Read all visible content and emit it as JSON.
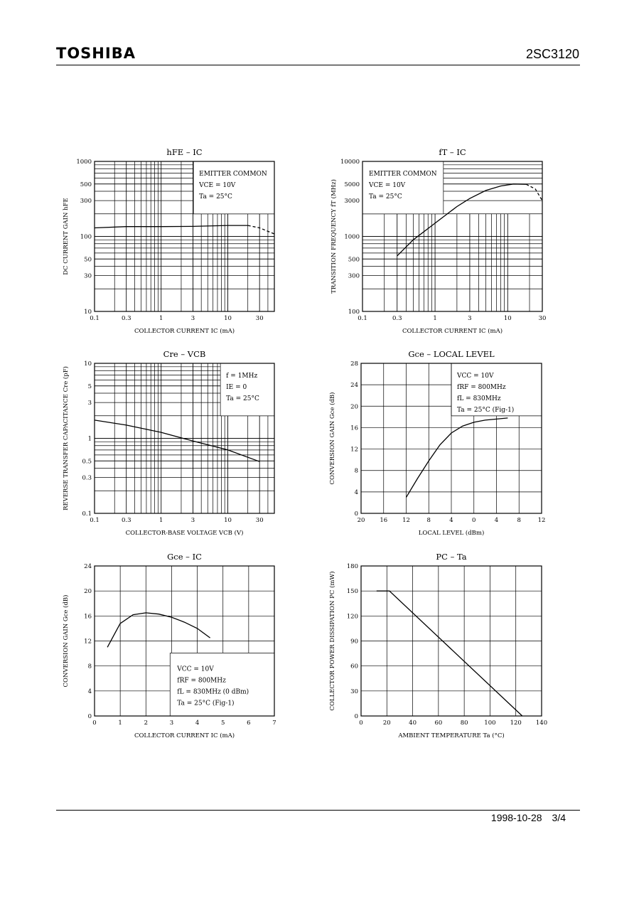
{
  "header": {
    "logo": "TOSHIBA",
    "part_number": "2SC3120"
  },
  "footer": {
    "date": "1998-10-28",
    "page": "3/4"
  },
  "chart_data": [
    {
      "id": "hfe",
      "type": "line",
      "title": "hFE – IC",
      "xlabel": "COLLECTOR CURRENT IC (mA)",
      "ylabel": "DC CURRENT GAIN hFE",
      "xscale": "log",
      "yscale": "log",
      "xlim": [
        0.1,
        50
      ],
      "ylim": [
        10,
        1000
      ],
      "xticks": [
        0.1,
        0.3,
        1,
        3,
        10,
        30
      ],
      "xtick_labels": [
        "0.1",
        "0.3",
        "1",
        "3",
        "10",
        "30"
      ],
      "yticks": [
        10,
        30,
        50,
        100,
        300,
        500,
        1000
      ],
      "ytick_labels": [
        "10",
        "30",
        "50",
        "100",
        "300",
        "500",
        "1000"
      ],
      "annotations": [
        "EMITTER COMMON",
        "VCE = 10V",
        "Ta = 25°C"
      ],
      "series": [
        {
          "points": [
            [
              0.1,
              130
            ],
            [
              0.3,
              135
            ],
            [
              1,
              135
            ],
            [
              3,
              136
            ],
            [
              10,
              140
            ],
            [
              20,
              140
            ]
          ]
        },
        {
          "dashed": true,
          "points": [
            [
              20,
              140
            ],
            [
              30,
              130
            ],
            [
              50,
              108
            ]
          ]
        }
      ]
    },
    {
      "id": "ft",
      "type": "line",
      "title": "fT – IC",
      "xlabel": "COLLECTOR CURRENT IC (mA)",
      "ylabel": "TRANSITION FREQUENCY fT (MHz)",
      "xscale": "log",
      "yscale": "log",
      "xlim": [
        0.1,
        30
      ],
      "ylim": [
        100,
        10000
      ],
      "xticks": [
        0.1,
        0.3,
        1,
        3,
        10,
        30
      ],
      "xtick_labels": [
        "0.1",
        "0.3",
        "1",
        "3",
        "10",
        "30"
      ],
      "yticks": [
        100,
        300,
        500,
        1000,
        3000,
        5000,
        10000
      ],
      "ytick_labels": [
        "100",
        "300",
        "500",
        "1000",
        "3000",
        "5000",
        "10000"
      ],
      "annotations": [
        "EMITTER COMMON",
        "VCE = 10V",
        "Ta = 25°C"
      ],
      "series": [
        {
          "points": [
            [
              0.3,
              550
            ],
            [
              0.5,
              900
            ],
            [
              1,
              1500
            ],
            [
              2,
              2500
            ],
            [
              3,
              3200
            ],
            [
              5,
              4100
            ],
            [
              8,
              4700
            ],
            [
              12,
              5000
            ],
            [
              18,
              4950
            ]
          ]
        },
        {
          "dashed": true,
          "points": [
            [
              18,
              4950
            ],
            [
              24,
              4300
            ],
            [
              30,
              3000
            ]
          ]
        }
      ]
    },
    {
      "id": "cre",
      "type": "line",
      "title": "Cre – VCB",
      "xlabel": "COLLECTOR-BASE VOLTAGE VCB (V)",
      "ylabel": "REVERSE TRANSFER CAPACITANCE Cre (pF)",
      "xscale": "log",
      "yscale": "log",
      "xlim": [
        0.1,
        50
      ],
      "ylim": [
        0.1,
        10
      ],
      "xticks": [
        0.1,
        0.3,
        1,
        3,
        10,
        30
      ],
      "xtick_labels": [
        "0.1",
        "0.3",
        "1",
        "3",
        "10",
        "30"
      ],
      "yticks": [
        0.1,
        0.3,
        0.5,
        1,
        3,
        5,
        10
      ],
      "ytick_labels": [
        "0.1",
        "0.3",
        "0.5",
        "1",
        "3",
        "5",
        "10"
      ],
      "annotations": [
        "f = 1MHz",
        "IE = 0",
        "Ta = 25°C"
      ],
      "series": [
        {
          "points": [
            [
              0.1,
              1.75
            ],
            [
              0.3,
              1.5
            ],
            [
              1,
              1.2
            ],
            [
              3,
              0.92
            ],
            [
              10,
              0.7
            ],
            [
              30,
              0.49
            ]
          ]
        }
      ]
    },
    {
      "id": "gce-lo",
      "type": "line",
      "title": "Gce – LOCAL LEVEL",
      "xlabel": "LOCAL LEVEL (dBm)",
      "ylabel": "CONVERSION GAIN Gce (dB)",
      "xscale": "linear",
      "yscale": "linear",
      "xlim": [
        -20,
        12
      ],
      "ylim": [
        0,
        28
      ],
      "xticks": [
        -20,
        -16,
        -12,
        -8,
        -4,
        0,
        4,
        8,
        12
      ],
      "xtick_labels": [
        "20",
        "16",
        "12",
        "8",
        "4",
        "0",
        "4",
        "8",
        "12"
      ],
      "yticks": [
        0,
        4,
        8,
        12,
        16,
        20,
        24,
        28
      ],
      "ytick_labels": [
        "0",
        "4",
        "8",
        "12",
        "16",
        "20",
        "24",
        "28"
      ],
      "annotations": [
        "VCC = 10V",
        "fRF = 800MHz",
        "fL = 830MHz",
        "Ta = 25°C (Fig-1)"
      ],
      "series": [
        {
          "points": [
            [
              -12,
              3
            ],
            [
              -10,
              6.5
            ],
            [
              -8,
              9.8
            ],
            [
              -6,
              12.8
            ],
            [
              -4,
              15
            ],
            [
              -2,
              16.3
            ],
            [
              0,
              17
            ],
            [
              2,
              17.4
            ],
            [
              4,
              17.6
            ],
            [
              6,
              17.8
            ]
          ]
        }
      ]
    },
    {
      "id": "gce-ic",
      "type": "line",
      "title": "Gce – IC",
      "xlabel": "COLLECTOR CURRENT IC (mA)",
      "ylabel": "CONVERSION GAIN Gce (dB)",
      "xscale": "linear",
      "yscale": "linear",
      "xlim": [
        0,
        7
      ],
      "ylim": [
        0,
        24
      ],
      "xticks": [
        0,
        1,
        2,
        3,
        4,
        5,
        6,
        7
      ],
      "xtick_labels": [
        "0",
        "1",
        "2",
        "3",
        "4",
        "5",
        "6",
        "7"
      ],
      "yticks": [
        0,
        4,
        8,
        12,
        16,
        20,
        24
      ],
      "ytick_labels": [
        "0",
        "4",
        "8",
        "12",
        "16",
        "20",
        "24"
      ],
      "annotations": [
        "VCC = 10V",
        "fRF = 800MHz",
        "fL = 830MHz (0 dBm)",
        "Ta = 25°C (Fig-1)"
      ],
      "series": [
        {
          "points": [
            [
              0.5,
              11
            ],
            [
              1,
              14.8
            ],
            [
              1.5,
              16.2
            ],
            [
              2,
              16.5
            ],
            [
              2.5,
              16.3
            ],
            [
              3,
              15.8
            ],
            [
              3.5,
              15
            ],
            [
              4,
              14
            ],
            [
              4.5,
              12.5
            ]
          ]
        }
      ]
    },
    {
      "id": "pc-ta",
      "type": "line",
      "title": "PC – Ta",
      "xlabel": "AMBIENT TEMPERATURE Ta (°C)",
      "ylabel": "COLLECTOR POWER DISSIPATION PC (mW)",
      "xscale": "linear",
      "yscale": "linear",
      "xlim": [
        0,
        140
      ],
      "ylim": [
        0,
        180
      ],
      "xticks": [
        0,
        20,
        40,
        60,
        80,
        100,
        120,
        140
      ],
      "xtick_labels": [
        "0",
        "20",
        "40",
        "60",
        "80",
        "100",
        "120",
        "140"
      ],
      "yticks": [
        0,
        30,
        60,
        90,
        120,
        150,
        180
      ],
      "ytick_labels": [
        "0",
        "30",
        "60",
        "90",
        "120",
        "150",
        "180"
      ],
      "annotations": [],
      "series": [
        {
          "points": [
            [
              12,
              150
            ],
            [
              22,
              150
            ],
            [
              125,
              0
            ]
          ]
        }
      ]
    }
  ]
}
